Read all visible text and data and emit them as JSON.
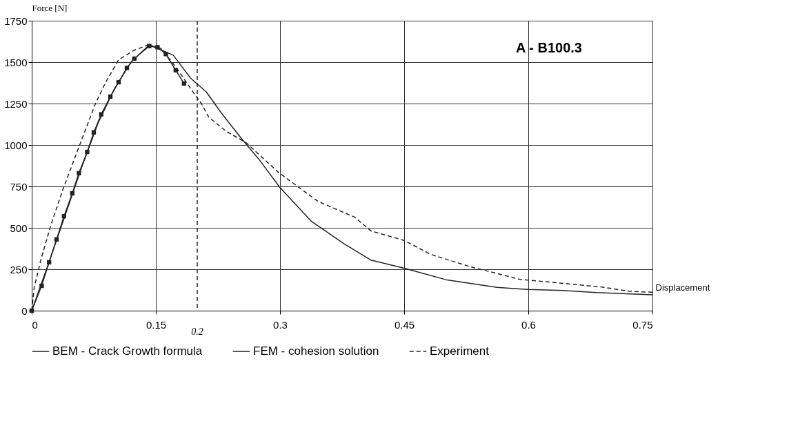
{
  "chart_data": {
    "type": "line",
    "xlabel": "Displacement",
    "ylabel": "Force [N]",
    "xlim": [
      0,
      0.75
    ],
    "ylim": [
      0,
      1750
    ],
    "xticks": [
      0,
      0.15,
      0.3,
      0.45,
      0.6,
      0.75
    ],
    "yticks": [
      0,
      250,
      500,
      750,
      1000,
      1250,
      1500,
      1750
    ],
    "grid": true,
    "legend": "bottom",
    "annotations": [
      "A - B100.3"
    ],
    "ref_lines": [
      {
        "axis": "x",
        "value": 0.2,
        "label": "0.2",
        "line_style": "dashed",
        "color": "#222222"
      }
    ],
    "series": [
      {
        "name": "BEM - Crack Growth formula",
        "color": "#222222",
        "marker": "square",
        "line_style": "solid",
        "x": [
          0,
          0.012,
          0.021,
          0.03,
          0.039,
          0.049,
          0.057,
          0.067,
          0.075,
          0.084,
          0.095,
          0.105,
          0.115,
          0.124,
          0.142,
          0.152,
          0.162,
          0.174,
          0.184
        ],
        "values": [
          0,
          150,
          292,
          430,
          570,
          708,
          830,
          958,
          1076,
          1185,
          1292,
          1379,
          1465,
          1521,
          1597,
          1590,
          1549,
          1451,
          1371
        ]
      },
      {
        "name": "FEM - cohesion solution",
        "color": "#222222",
        "marker": "none",
        "line_style": "solid",
        "x": [
          0,
          0.02,
          0.04,
          0.06,
          0.08,
          0.1,
          0.12,
          0.142,
          0.171,
          0.192,
          0.211,
          0.229,
          0.253,
          0.274,
          0.3,
          0.338,
          0.378,
          0.41,
          0.45,
          0.502,
          0.562,
          0.6,
          0.642,
          0.682,
          0.75
        ],
        "values": [
          0,
          280,
          570,
          860,
          1130,
          1340,
          1500,
          1604,
          1542,
          1403,
          1320,
          1194,
          1042,
          917,
          743,
          539,
          402,
          305,
          256,
          185,
          141,
          128,
          122,
          109,
          96
        ]
      },
      {
        "name": "Experiment",
        "color": "#222222",
        "marker": "none",
        "line_style": "dashed",
        "x": [
          0,
          0.003,
          0.011,
          0.023,
          0.038,
          0.059,
          0.077,
          0.089,
          0.105,
          0.123,
          0.141,
          0.156,
          0.174,
          0.195,
          0.205,
          0.214,
          0.235,
          0.259,
          0.298,
          0.346,
          0.39,
          0.41,
          0.45,
          0.482,
          0.53,
          0.59,
          0.642,
          0.69,
          0.722,
          0.75
        ],
        "values": [
          0,
          139,
          306,
          514,
          736,
          1014,
          1250,
          1375,
          1514,
          1570,
          1604,
          1583,
          1472,
          1319,
          1250,
          1167,
          1083,
          1014,
          835,
          659,
          565,
          481,
          424,
          340,
          265,
          189,
          165,
          142,
          117,
          111
        ]
      }
    ]
  }
}
